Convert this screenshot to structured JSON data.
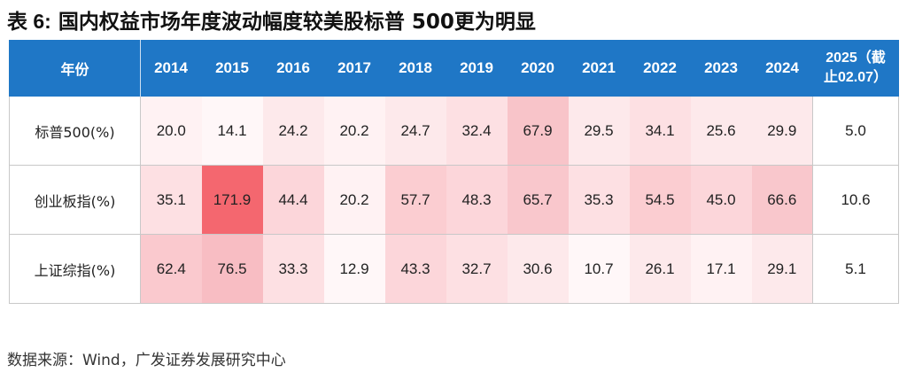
{
  "title": {
    "prefix": "表 6:",
    "text": "国内权益市场年度波动幅度较美股标普 500更为明显"
  },
  "table": {
    "corner_label": "年份",
    "years": [
      "2014",
      "2015",
      "2016",
      "2017",
      "2018",
      "2019",
      "2020",
      "2021",
      "2022",
      "2023",
      "2024"
    ],
    "ytd_label_line1": "2025（截",
    "ytd_label_line2": "止02.07）",
    "rows": [
      {
        "label": "标普500(%)",
        "values": [
          "20.0",
          "14.1",
          "24.2",
          "20.2",
          "24.7",
          "32.4",
          "67.9",
          "29.5",
          "34.1",
          "25.6",
          "29.9"
        ],
        "ytd": "5.0",
        "colors": [
          "#fff2f3",
          "#fff7f8",
          "#fde9eb",
          "#fff2f3",
          "#fde9eb",
          "#fde0e3",
          "#f8c4c9",
          "#fde9eb",
          "#fde0e3",
          "#fde9eb",
          "#fde9eb"
        ]
      },
      {
        "label": "创业板指(%)",
        "values": [
          "35.1",
          "171.9",
          "44.4",
          "20.2",
          "57.7",
          "48.3",
          "65.7",
          "35.3",
          "54.5",
          "45.0",
          "66.6"
        ],
        "ytd": "10.6",
        "colors": [
          "#fde0e3",
          "#f4676f",
          "#fcd6da",
          "#fff2f3",
          "#fbcdd1",
          "#fcd6da",
          "#f9c7cc",
          "#fde0e3",
          "#fbcdd1",
          "#fcd6da",
          "#f9c7cc"
        ]
      },
      {
        "label": "上证综指(%)",
        "values": [
          "62.4",
          "76.5",
          "33.3",
          "12.9",
          "43.3",
          "32.7",
          "30.6",
          "10.7",
          "26.1",
          "17.1",
          "29.1"
        ],
        "ytd": "5.1",
        "colors": [
          "#fac9ce",
          "#f8bdc3",
          "#fde0e3",
          "#fff7f8",
          "#fcd6da",
          "#fde0e3",
          "#fde9eb",
          "#fff7f8",
          "#fde9eb",
          "#fff2f3",
          "#fde9eb"
        ]
      }
    ]
  },
  "source": "数据来源：Wind，广发证券发展研究中心"
}
